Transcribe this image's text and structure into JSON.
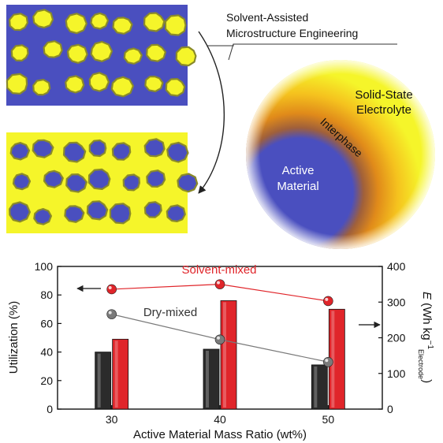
{
  "schematic": {
    "process_label_line1": "Solvent-Assisted",
    "process_label_line2": "Microstructure Engineering",
    "electrolyte_label_line1": "Solid-State",
    "electrolyte_label_line2": "Electrolyte",
    "interphase_label": "Interphase",
    "active_label_line1": "Active",
    "active_label_line2": "Material",
    "colors": {
      "active_material": "#4a4fbf",
      "electrolyte": "#f5f52a",
      "particle_outline": "#8a8a2a",
      "interphase": "#d4821a"
    }
  },
  "chart_data": {
    "type": "bar",
    "categories": [
      "30",
      "40",
      "50"
    ],
    "xlabel": "Active Material Mass Ratio (wt%)",
    "y_left": {
      "label": "Utilization (%)",
      "lim": [
        0,
        100
      ],
      "ticks": [
        "0",
        "20",
        "40",
        "60",
        "80",
        "100"
      ]
    },
    "y_right": {
      "label_italic": "E",
      "label_main": " (Wh kg",
      "label_sup": "−1",
      "label_sub": "Electrode",
      "label_close": ")",
      "lim": [
        0,
        400
      ],
      "ticks": [
        "0",
        "100",
        "200",
        "300",
        "400"
      ]
    },
    "bar_series": [
      {
        "group": "dry",
        "color": "#2b2b2b",
        "values": [
          40,
          42,
          31
        ]
      },
      {
        "group": "solvent",
        "color": "#e0252a",
        "values": [
          49,
          76,
          70
        ]
      }
    ],
    "line_series": [
      {
        "name": "Solvent-mixed",
        "color": "#e0252a",
        "values": [
          336,
          350,
          303
        ]
      },
      {
        "name": "Dry-mixed",
        "color": "#7a7a7a",
        "values": [
          266,
          195,
          132
        ]
      }
    ],
    "grid": false
  }
}
